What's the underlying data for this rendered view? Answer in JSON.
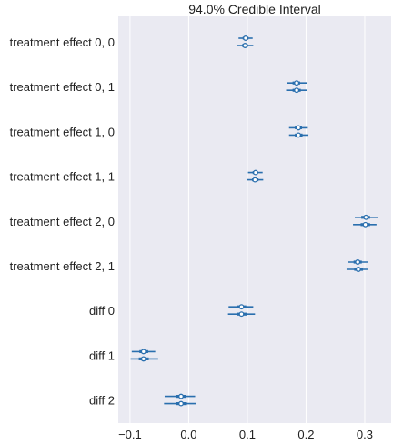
{
  "chart_data": {
    "type": "forest",
    "title": "94.0% Credible Interval",
    "xlabel": "",
    "ylabel": "",
    "xlim": [
      -0.12,
      0.345
    ],
    "xticks": [
      -0.1,
      0.0,
      0.1,
      0.2,
      0.3
    ],
    "xtick_labels": [
      "−0.1",
      "0.0",
      "0.1",
      "0.2",
      "0.3"
    ],
    "grid": true,
    "rows": [
      {
        "label": "treatment effect 0, 0",
        "chains": [
          {
            "mean": 0.097,
            "hdi_low": 0.085,
            "hdi_high": 0.109,
            "iqr_low": 0.092,
            "iqr_high": 0.102
          },
          {
            "mean": 0.096,
            "hdi_low": 0.083,
            "hdi_high": 0.11,
            "iqr_low": 0.091,
            "iqr_high": 0.101
          }
        ]
      },
      {
        "label": "treatment effect 0, 1",
        "chains": [
          {
            "mean": 0.184,
            "hdi_low": 0.168,
            "hdi_high": 0.201,
            "iqr_low": 0.177,
            "iqr_high": 0.19
          },
          {
            "mean": 0.184,
            "hdi_low": 0.166,
            "hdi_high": 0.201,
            "iqr_low": 0.177,
            "iqr_high": 0.191
          }
        ]
      },
      {
        "label": "treatment effect 1, 0",
        "chains": [
          {
            "mean": 0.187,
            "hdi_low": 0.171,
            "hdi_high": 0.203,
            "iqr_low": 0.181,
            "iqr_high": 0.193
          },
          {
            "mean": 0.187,
            "hdi_low": 0.171,
            "hdi_high": 0.204,
            "iqr_low": 0.181,
            "iqr_high": 0.194
          }
        ]
      },
      {
        "label": "treatment effect 1, 1",
        "chains": [
          {
            "mean": 0.114,
            "hdi_low": 0.101,
            "hdi_high": 0.126,
            "iqr_low": 0.109,
            "iqr_high": 0.118
          },
          {
            "mean": 0.113,
            "hdi_low": 0.1,
            "hdi_high": 0.127,
            "iqr_low": 0.108,
            "iqr_high": 0.119
          }
        ]
      },
      {
        "label": "treatment effect 2, 0",
        "chains": [
          {
            "mean": 0.302,
            "hdi_low": 0.283,
            "hdi_high": 0.322,
            "iqr_low": 0.294,
            "iqr_high": 0.309
          },
          {
            "mean": 0.301,
            "hdi_low": 0.28,
            "hdi_high": 0.32,
            "iqr_low": 0.293,
            "iqr_high": 0.309
          }
        ]
      },
      {
        "label": "treatment effect 2, 1",
        "chains": [
          {
            "mean": 0.288,
            "hdi_low": 0.271,
            "hdi_high": 0.306,
            "iqr_low": 0.281,
            "iqr_high": 0.295
          },
          {
            "mean": 0.289,
            "hdi_low": 0.269,
            "hdi_high": 0.306,
            "iqr_low": 0.282,
            "iqr_high": 0.297
          }
        ]
      },
      {
        "label": "diff 0",
        "chains": [
          {
            "mean": 0.09,
            "hdi_low": 0.068,
            "hdi_high": 0.11,
            "iqr_low": 0.082,
            "iqr_high": 0.098
          },
          {
            "mean": 0.09,
            "hdi_low": 0.067,
            "hdi_high": 0.113,
            "iqr_low": 0.082,
            "iqr_high": 0.099
          }
        ]
      },
      {
        "label": "diff 1",
        "chains": [
          {
            "mean": -0.077,
            "hdi_low": -0.097,
            "hdi_high": -0.057,
            "iqr_low": -0.084,
            "iqr_high": -0.069
          },
          {
            "mean": -0.077,
            "hdi_low": -0.099,
            "hdi_high": -0.052,
            "iqr_low": -0.085,
            "iqr_high": -0.068
          }
        ]
      },
      {
        "label": "diff 2",
        "chains": [
          {
            "mean": -0.013,
            "hdi_low": -0.041,
            "hdi_high": 0.011,
            "iqr_low": -0.022,
            "iqr_high": -0.004
          },
          {
            "mean": -0.013,
            "hdi_low": -0.042,
            "hdi_high": 0.012,
            "iqr_low": -0.022,
            "iqr_high": -0.003
          }
        ]
      }
    ]
  },
  "colors": {
    "background": "#eaeaf2",
    "grid": "#ffffff",
    "series": "#2a6fae",
    "marker_fill": "#ffffff",
    "text": "#222222"
  }
}
